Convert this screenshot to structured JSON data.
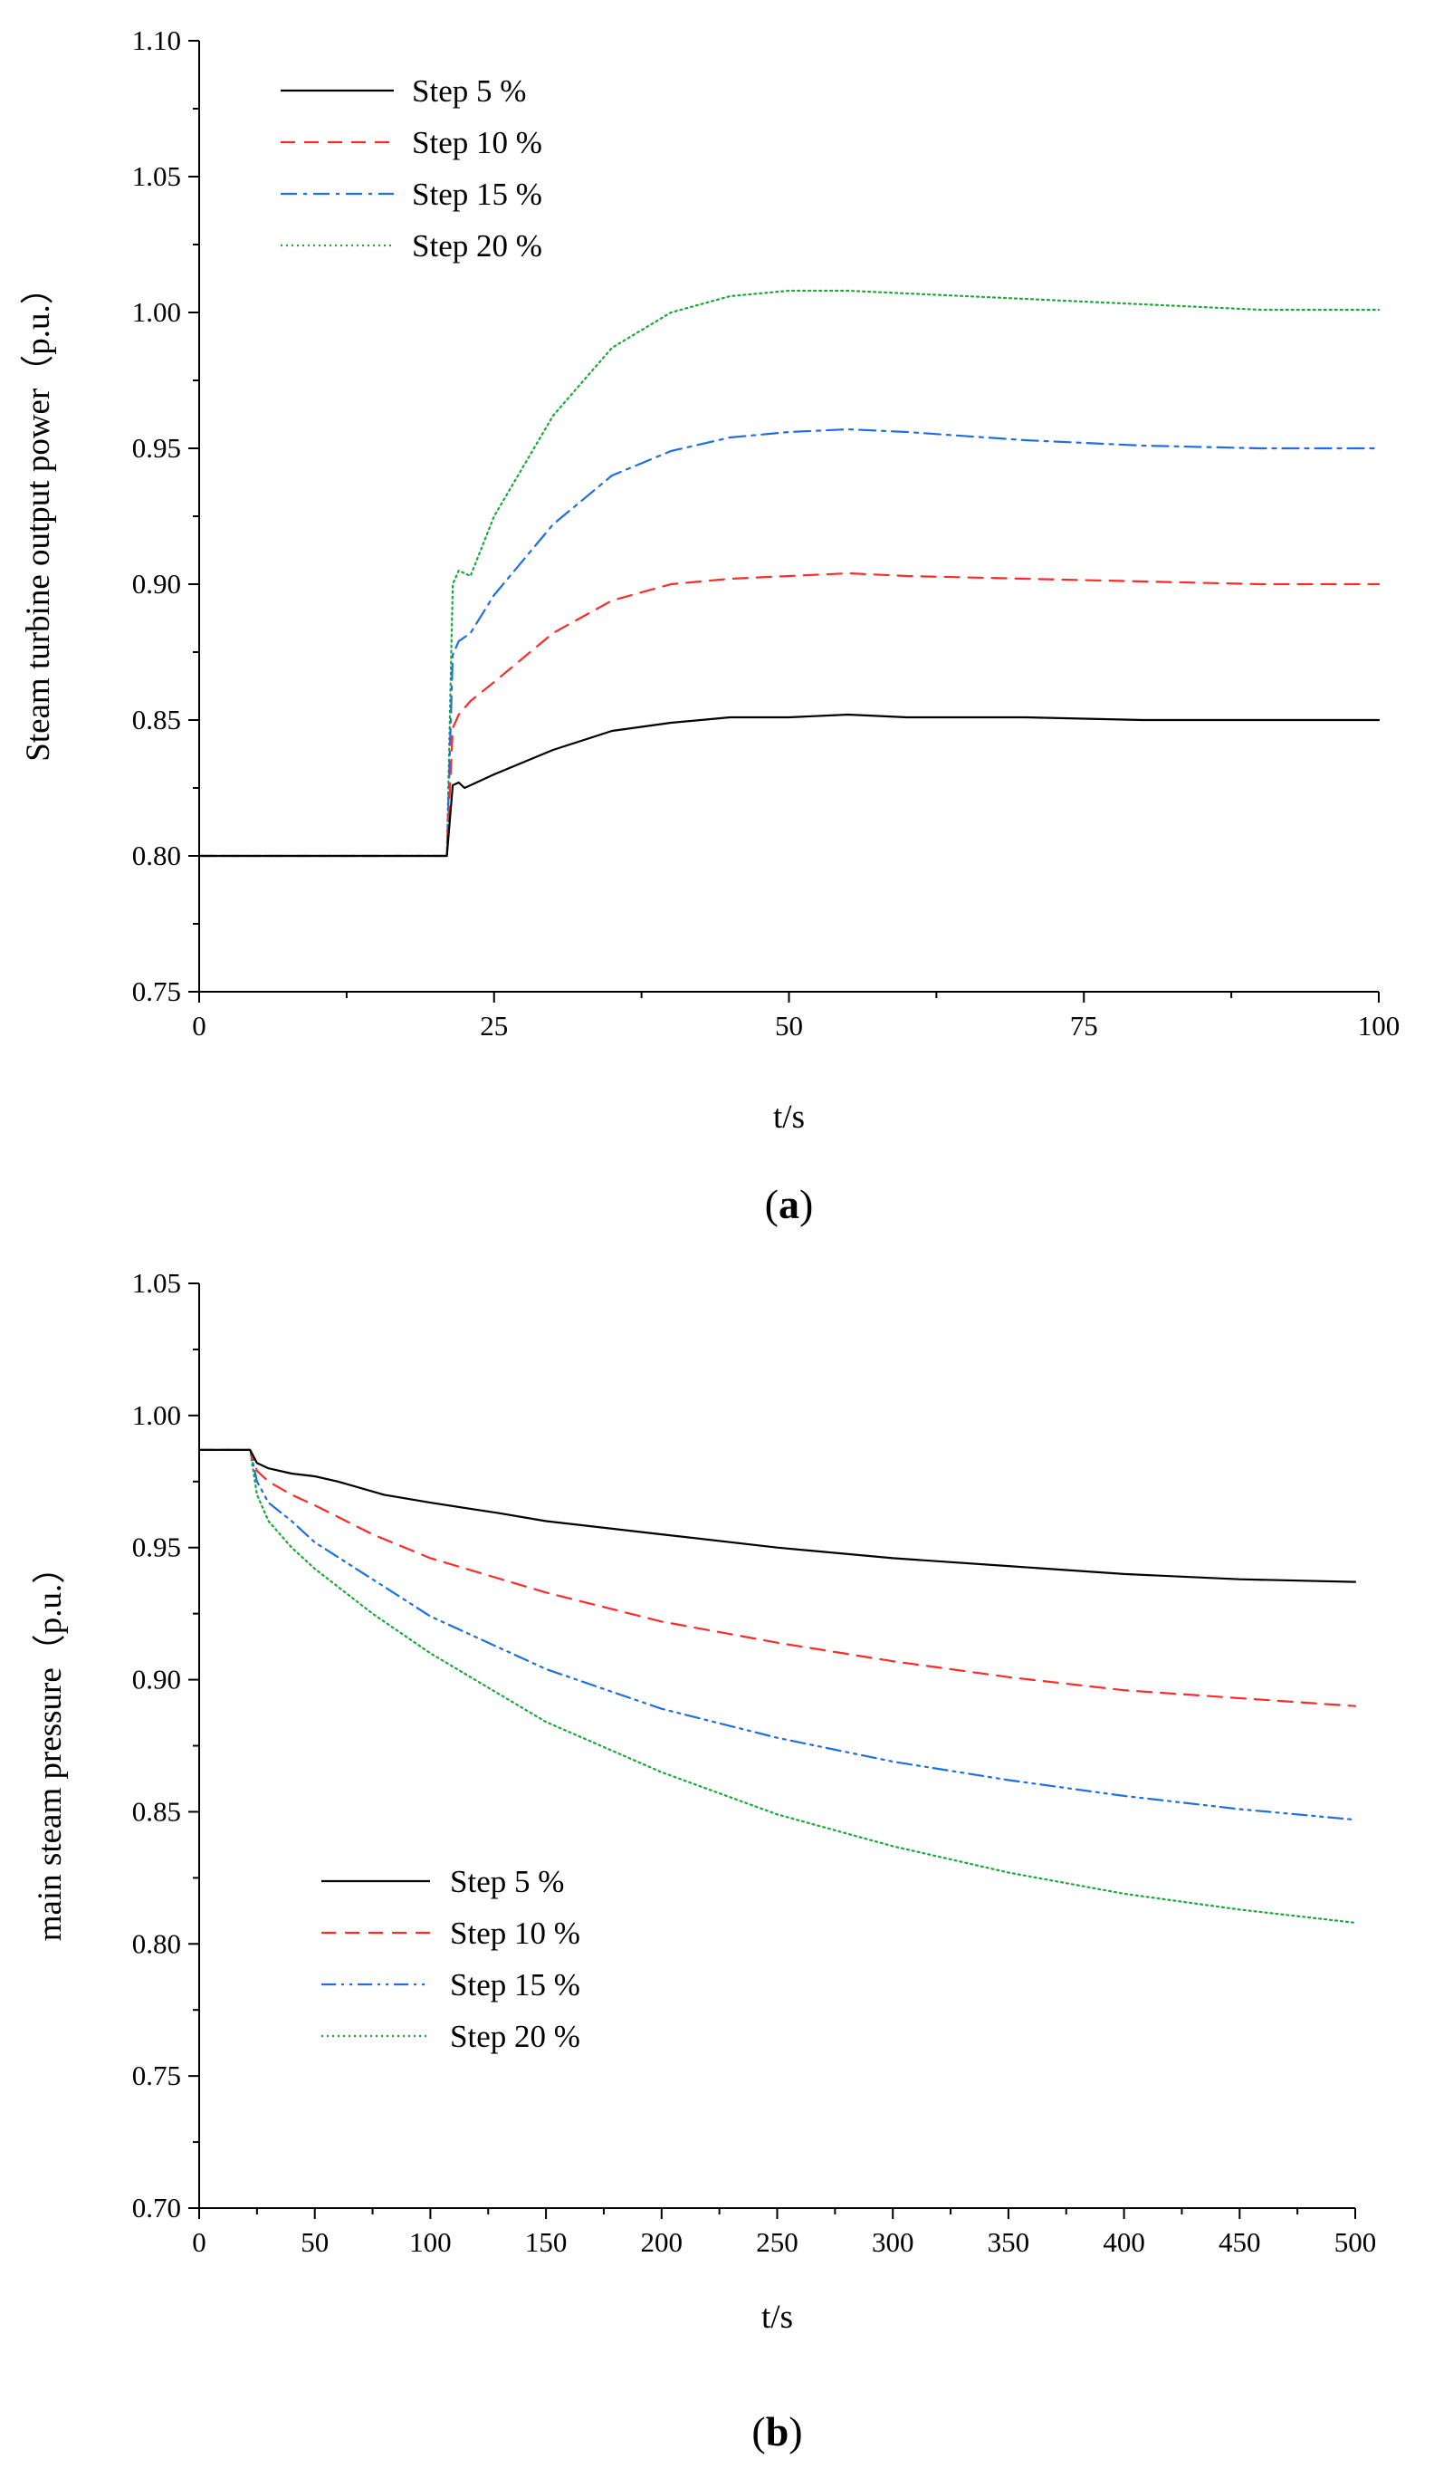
{
  "chart_data": [
    {
      "type": "line",
      "panel_label": "a",
      "title": "",
      "xlabel": "t/s",
      "ylabel": "Steam turbine output power（p.u.）",
      "xlim": [
        0,
        100
      ],
      "ylim": [
        0.75,
        1.1
      ],
      "xticks": [
        0,
        25,
        50,
        75,
        100
      ],
      "yticks": [
        0.75,
        0.8,
        0.85,
        0.9,
        0.95,
        1.0,
        1.05,
        1.1
      ],
      "xtick_labels": [
        "0",
        "25",
        "50",
        "75",
        "100"
      ],
      "ytick_labels": [
        "0.75",
        "0.80",
        "0.85",
        "0.90",
        "0.95",
        "1.00",
        "1.05",
        "1.10"
      ],
      "legend_position": "top-left",
      "series": [
        {
          "name": "Step 5 %",
          "color": "#000000",
          "dash": "solid",
          "x": [
            0,
            20,
            21,
            21.5,
            22,
            22.5,
            23,
            25,
            30,
            35,
            40,
            45,
            50,
            55,
            60,
            70,
            80,
            90,
            100
          ],
          "y": [
            0.8,
            0.8,
            0.8,
            0.826,
            0.827,
            0.825,
            0.826,
            0.83,
            0.839,
            0.846,
            0.849,
            0.851,
            0.851,
            0.852,
            0.851,
            0.851,
            0.85,
            0.85,
            0.85
          ]
        },
        {
          "name": "Step 10 %",
          "color": "#ff2a2a",
          "dash": "dashed",
          "x": [
            0,
            20,
            21,
            21.5,
            22,
            23,
            25,
            30,
            35,
            40,
            45,
            50,
            55,
            60,
            70,
            80,
            90,
            100
          ],
          "y": [
            0.8,
            0.8,
            0.8,
            0.847,
            0.852,
            0.857,
            0.864,
            0.882,
            0.894,
            0.9,
            0.902,
            0.903,
            0.904,
            0.903,
            0.902,
            0.901,
            0.9,
            0.9
          ]
        },
        {
          "name": "Step 15 %",
          "color": "#1f6fe0",
          "dash": "dash-dot",
          "x": [
            0,
            20,
            21,
            21.5,
            22,
            23,
            25,
            30,
            35,
            40,
            45,
            50,
            55,
            60,
            70,
            80,
            90,
            100
          ],
          "y": [
            0.8,
            0.8,
            0.8,
            0.874,
            0.879,
            0.882,
            0.896,
            0.922,
            0.94,
            0.949,
            0.954,
            0.956,
            0.957,
            0.956,
            0.953,
            0.951,
            0.95,
            0.95
          ]
        },
        {
          "name": "Step 20 %",
          "color": "#1aa83a",
          "dash": "dotted",
          "x": [
            0,
            20,
            21,
            21.5,
            22,
            23,
            25,
            30,
            35,
            40,
            45,
            50,
            55,
            60,
            70,
            80,
            90,
            100
          ],
          "y": [
            0.8,
            0.8,
            0.8,
            0.9,
            0.905,
            0.903,
            0.925,
            0.962,
            0.987,
            1.0,
            1.006,
            1.008,
            1.008,
            1.007,
            1.005,
            1.003,
            1.001,
            1.001
          ]
        }
      ]
    },
    {
      "type": "line",
      "panel_label": "b",
      "title": "",
      "xlabel": "t/s",
      "ylabel": "main steam pressure（p.u.）",
      "xlim": [
        0,
        500
      ],
      "ylim": [
        0.7,
        1.05
      ],
      "xticks": [
        0,
        50,
        100,
        150,
        200,
        250,
        300,
        350,
        400,
        450,
        500
      ],
      "yticks": [
        0.7,
        0.75,
        0.8,
        0.85,
        0.9,
        0.95,
        1.0,
        1.05
      ],
      "xtick_labels": [
        "0",
        "50",
        "100",
        "150",
        "200",
        "250",
        "300",
        "350",
        "400",
        "450",
        "500"
      ],
      "ytick_labels": [
        "0.70",
        "0.75",
        "0.80",
        "0.85",
        "0.90",
        "0.95",
        "1.00",
        "1.05"
      ],
      "legend_position": "bottom-left",
      "series": [
        {
          "name": "Step 5 %",
          "color": "#000000",
          "dash": "solid",
          "x": [
            0,
            22,
            25,
            30,
            40,
            50,
            60,
            80,
            100,
            130,
            150,
            200,
            250,
            300,
            350,
            400,
            450,
            500
          ],
          "y": [
            0.987,
            0.987,
            0.982,
            0.98,
            0.978,
            0.977,
            0.975,
            0.97,
            0.967,
            0.963,
            0.96,
            0.955,
            0.95,
            0.946,
            0.943,
            0.94,
            0.938,
            0.937
          ]
        },
        {
          "name": "Step 10 %",
          "color": "#ff2a2a",
          "dash": "dashed",
          "x": [
            0,
            22,
            25,
            30,
            40,
            50,
            75,
            100,
            150,
            200,
            250,
            300,
            350,
            400,
            450,
            500
          ],
          "y": [
            0.987,
            0.987,
            0.979,
            0.975,
            0.97,
            0.966,
            0.955,
            0.946,
            0.933,
            0.922,
            0.914,
            0.907,
            0.901,
            0.896,
            0.893,
            0.89
          ]
        },
        {
          "name": "Step 15 %",
          "color": "#1f6fe0",
          "dash": "dash-dot-dot",
          "x": [
            0,
            22,
            25,
            30,
            40,
            50,
            75,
            100,
            150,
            200,
            250,
            300,
            350,
            400,
            450,
            500
          ],
          "y": [
            0.987,
            0.987,
            0.975,
            0.967,
            0.96,
            0.952,
            0.938,
            0.924,
            0.904,
            0.889,
            0.878,
            0.869,
            0.862,
            0.856,
            0.851,
            0.847
          ]
        },
        {
          "name": "Step 20 %",
          "color": "#1aa83a",
          "dash": "dotted",
          "x": [
            0,
            22,
            25,
            30,
            40,
            50,
            75,
            100,
            150,
            200,
            250,
            300,
            350,
            400,
            450,
            500
          ],
          "y": [
            0.987,
            0.987,
            0.97,
            0.96,
            0.95,
            0.942,
            0.925,
            0.91,
            0.884,
            0.865,
            0.849,
            0.837,
            0.827,
            0.819,
            0.813,
            0.808
          ]
        }
      ]
    }
  ]
}
